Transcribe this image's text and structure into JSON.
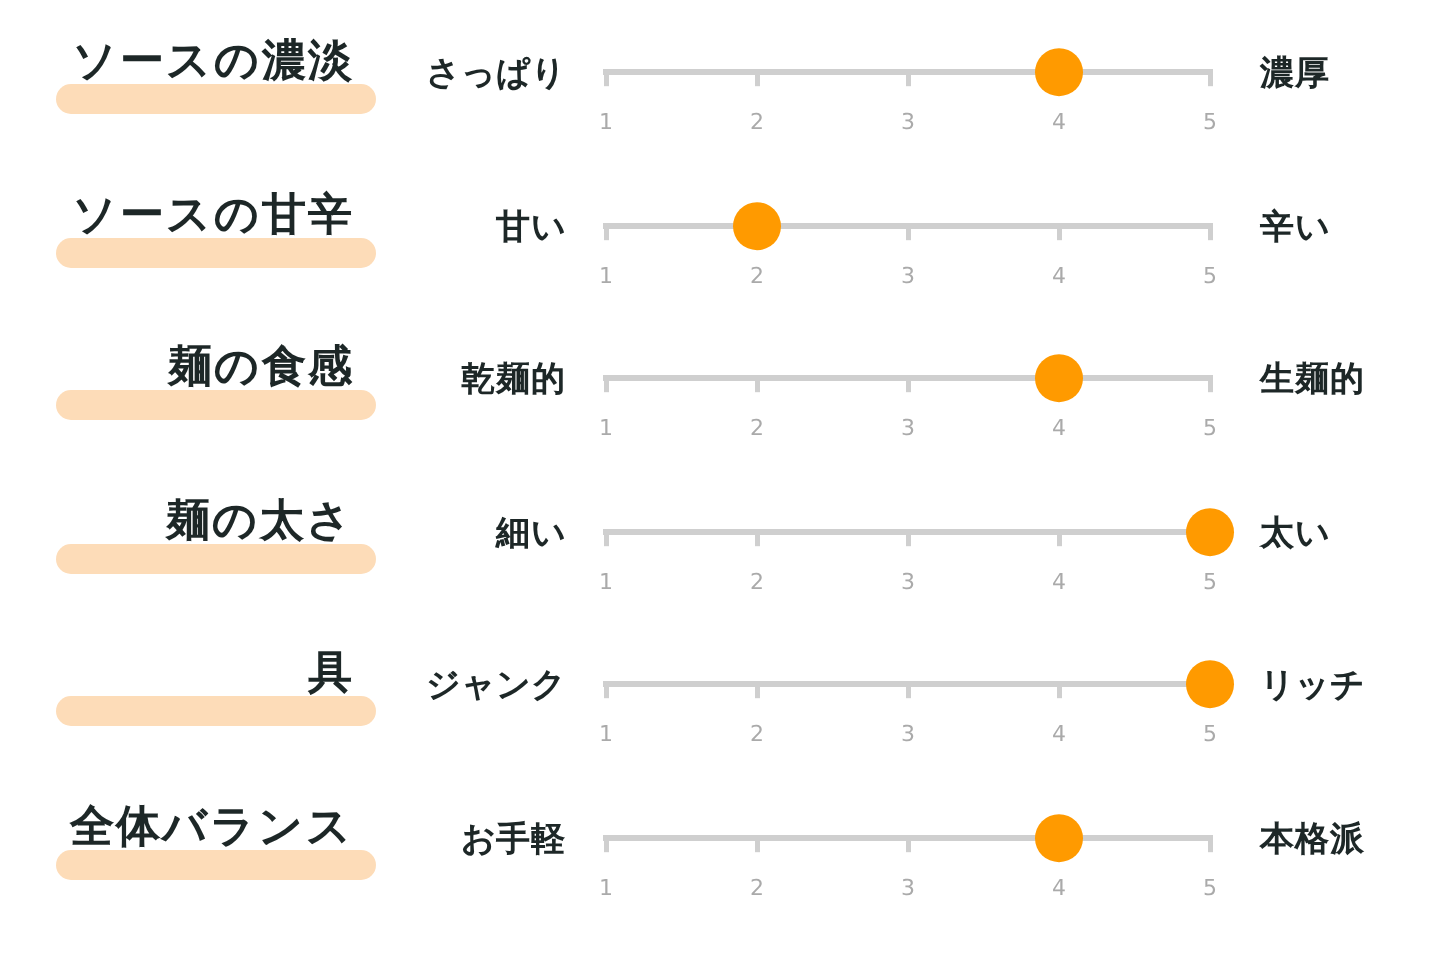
{
  "chart_data": [
    {
      "type": "scatter",
      "orientation": "horizontal",
      "categories": [
        "ソースの濃淡"
      ],
      "values": [
        4
      ],
      "color": "#ff9a00",
      "marker": "circle",
      "xlim": [
        1,
        5
      ],
      "xticks": [
        1,
        2,
        3,
        4,
        5
      ],
      "annotations": [
        "さっぱり",
        "濃厚"
      ]
    },
    {
      "type": "scatter",
      "orientation": "horizontal",
      "categories": [
        "ソースの甘辛"
      ],
      "values": [
        2
      ],
      "color": "#ff9a00",
      "marker": "circle",
      "xlim": [
        1,
        5
      ],
      "xticks": [
        1,
        2,
        3,
        4,
        5
      ],
      "annotations": [
        "甘い",
        "辛い"
      ]
    },
    {
      "type": "scatter",
      "orientation": "horizontal",
      "categories": [
        "麺の食感"
      ],
      "values": [
        4
      ],
      "color": "#ff9a00",
      "marker": "circle",
      "xlim": [
        1,
        5
      ],
      "xticks": [
        1,
        2,
        3,
        4,
        5
      ],
      "annotations": [
        "乾麺的",
        "生麺的"
      ]
    },
    {
      "type": "scatter",
      "orientation": "horizontal",
      "categories": [
        "麺の太さ"
      ],
      "values": [
        5
      ],
      "color": "#ff9a00",
      "marker": "circle",
      "xlim": [
        1,
        5
      ],
      "xticks": [
        1,
        2,
        3,
        4,
        5
      ],
      "annotations": [
        "細い",
        "太い"
      ]
    },
    {
      "type": "scatter",
      "orientation": "horizontal",
      "categories": [
        "具"
      ],
      "values": [
        5
      ],
      "color": "#ff9a00",
      "marker": "circle",
      "xlim": [
        1,
        5
      ],
      "xticks": [
        1,
        2,
        3,
        4,
        5
      ],
      "annotations": [
        "ジャンク",
        "リッチ"
      ]
    },
    {
      "type": "scatter",
      "orientation": "horizontal",
      "categories": [
        "全体バランス"
      ],
      "values": [
        4
      ],
      "color": "#ff9a00",
      "marker": "circle",
      "xlim": [
        1,
        5
      ],
      "xticks": [
        1,
        2,
        3,
        4,
        5
      ],
      "annotations": [
        "お手軽",
        "本格派"
      ]
    }
  ]
}
